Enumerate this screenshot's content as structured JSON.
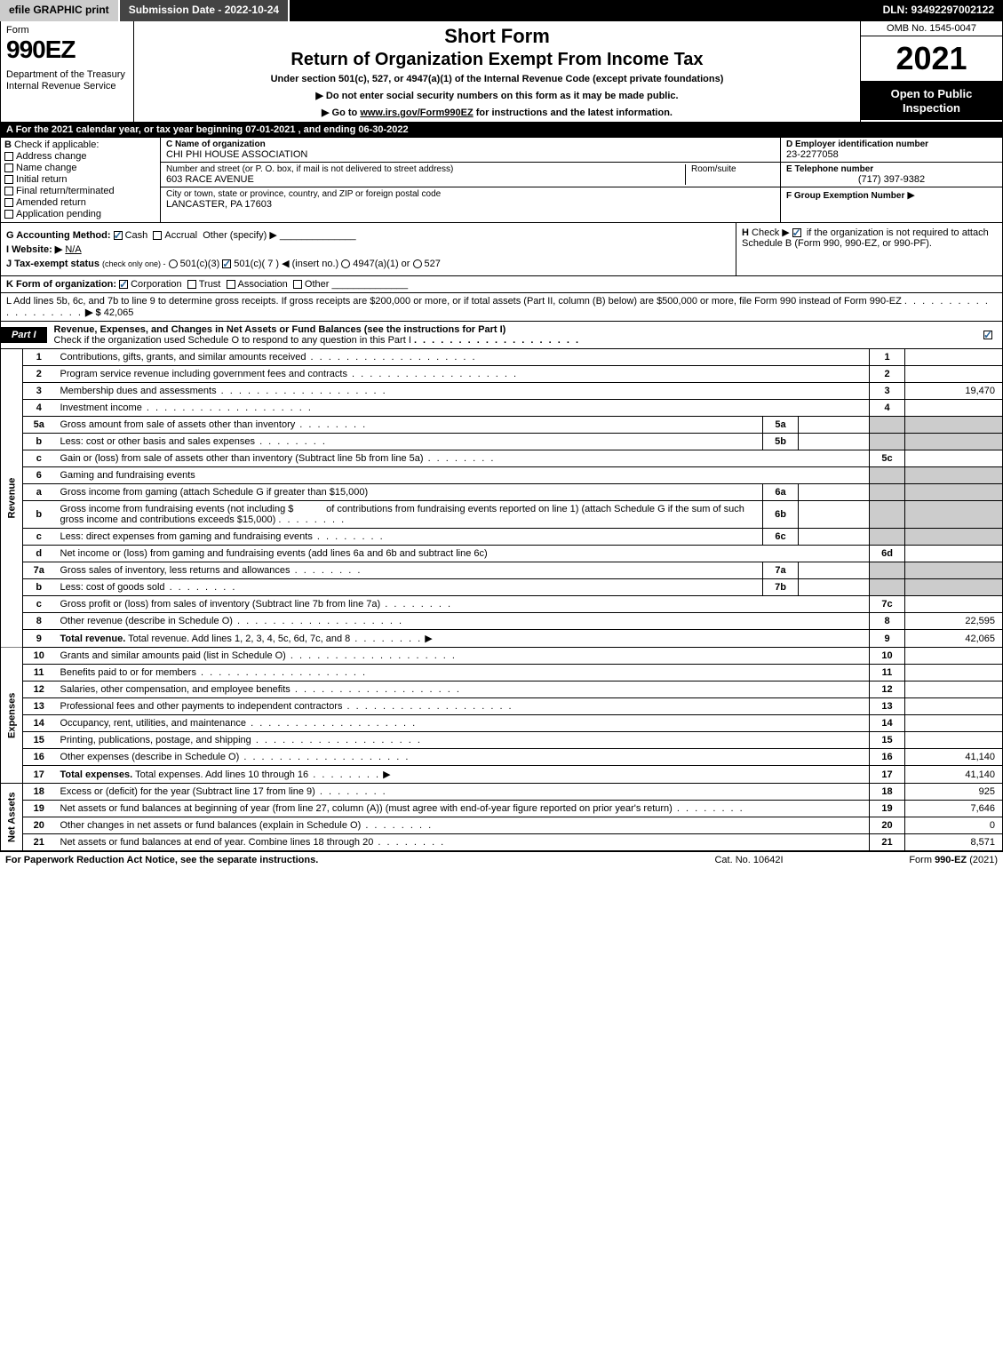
{
  "topbar": {
    "efile": "efile GRAPHIC print",
    "submission": "Submission Date - 2022-10-24",
    "dln": "DLN: 93492297002122"
  },
  "header": {
    "form_label": "Form",
    "form_num": "990EZ",
    "dept": "Department of the Treasury\nInternal Revenue Service",
    "short_form": "Short Form",
    "title": "Return of Organization Exempt From Income Tax",
    "sub": "Under section 501(c), 527, or 4947(a)(1) of the Internal Revenue Code (except private foundations)",
    "instr1": "▶ Do not enter social security numbers on this form as it may be made public.",
    "instr2_pre": "▶ Go to ",
    "instr2_link": "www.irs.gov/Form990EZ",
    "instr2_post": " for instructions and the latest information.",
    "omb": "OMB No. 1545-0047",
    "year": "2021",
    "open": "Open to Public Inspection"
  },
  "sectionA": "A  For the 2021 calendar year, or tax year beginning 07-01-2021 , and ending 06-30-2022",
  "B": {
    "label": "B",
    "check_if": "Check if applicable:",
    "items": [
      "Address change",
      "Name change",
      "Initial return",
      "Final return/terminated",
      "Amended return",
      "Application pending"
    ]
  },
  "C": {
    "name_label": "C Name of organization",
    "name": "CHI PHI HOUSE ASSOCIATION",
    "street_label": "Number and street (or P. O. box, if mail is not delivered to street address)",
    "room_label": "Room/suite",
    "street": "603 RACE AVENUE",
    "city_label": "City or town, state or province, country, and ZIP or foreign postal code",
    "city": "LANCASTER, PA  17603"
  },
  "D": {
    "label": "D Employer identification number",
    "val": "23-2277058"
  },
  "E": {
    "label": "E Telephone number",
    "val": "(717) 397-9382"
  },
  "F": {
    "label": "F Group Exemption Number",
    "arrow": "▶"
  },
  "G": {
    "label": "G Accounting Method:",
    "cash": "Cash",
    "accrual": "Accrual",
    "other": "Other (specify) ▶"
  },
  "H": {
    "text_pre": "H",
    "check": "Check ▶",
    "text": "if the organization is not required to attach Schedule B (Form 990, 990-EZ, or 990-PF)."
  },
  "I": {
    "label": "I Website: ▶",
    "val": "N/A"
  },
  "J": {
    "label": "J Tax-exempt status",
    "note": "(check only one) -",
    "opts": [
      "501(c)(3)",
      "501(c)( 7 ) ◀ (insert no.)",
      "4947(a)(1) or",
      "527"
    ]
  },
  "K": {
    "label": "K Form of organization:",
    "opts": [
      "Corporation",
      "Trust",
      "Association",
      "Other"
    ]
  },
  "L": {
    "text": "L Add lines 5b, 6c, and 7b to line 9 to determine gross receipts. If gross receipts are $200,000 or more, or if total assets (Part II, column (B) below) are $500,000 or more, file Form 990 instead of Form 990-EZ",
    "arrow": "▶ $",
    "val": "42,065"
  },
  "part1": {
    "tag": "Part I",
    "title": "Revenue, Expenses, and Changes in Net Assets or Fund Balances (see the instructions for Part I)",
    "sub": "Check if the organization used Schedule O to respond to any question in this Part I"
  },
  "sidebars": {
    "revenue": "Revenue",
    "expenses": "Expenses",
    "netassets": "Net Assets"
  },
  "lines": {
    "1": {
      "desc": "Contributions, gifts, grants, and similar amounts received",
      "val": ""
    },
    "2": {
      "desc": "Program service revenue including government fees and contracts",
      "val": ""
    },
    "3": {
      "desc": "Membership dues and assessments",
      "val": "19,470"
    },
    "4": {
      "desc": "Investment income",
      "val": ""
    },
    "5a": {
      "desc": "Gross amount from sale of assets other than inventory"
    },
    "5b": {
      "desc": "Less: cost or other basis and sales expenses"
    },
    "5c": {
      "desc": "Gain or (loss) from sale of assets other than inventory (Subtract line 5b from line 5a)",
      "val": ""
    },
    "6": {
      "desc": "Gaming and fundraising events"
    },
    "6a": {
      "desc": "Gross income from gaming (attach Schedule G if greater than $15,000)"
    },
    "6b": {
      "desc_pre": "Gross income from fundraising events (not including $",
      "desc_mid": "of contributions from fundraising events reported on line 1) (attach Schedule G if the sum of such gross income and contributions exceeds $15,000)"
    },
    "6c": {
      "desc": "Less: direct expenses from gaming and fundraising events"
    },
    "6d": {
      "desc": "Net income or (loss) from gaming and fundraising events (add lines 6a and 6b and subtract line 6c)",
      "val": ""
    },
    "7a": {
      "desc": "Gross sales of inventory, less returns and allowances"
    },
    "7b": {
      "desc": "Less: cost of goods sold"
    },
    "7c": {
      "desc": "Gross profit or (loss) from sales of inventory (Subtract line 7b from line 7a)",
      "val": ""
    },
    "8": {
      "desc": "Other revenue (describe in Schedule O)",
      "val": "22,595"
    },
    "9": {
      "desc": "Total revenue. Add lines 1, 2, 3, 4, 5c, 6d, 7c, and 8",
      "val": "42,065"
    },
    "10": {
      "desc": "Grants and similar amounts paid (list in Schedule O)",
      "val": ""
    },
    "11": {
      "desc": "Benefits paid to or for members",
      "val": ""
    },
    "12": {
      "desc": "Salaries, other compensation, and employee benefits",
      "val": ""
    },
    "13": {
      "desc": "Professional fees and other payments to independent contractors",
      "val": ""
    },
    "14": {
      "desc": "Occupancy, rent, utilities, and maintenance",
      "val": ""
    },
    "15": {
      "desc": "Printing, publications, postage, and shipping",
      "val": ""
    },
    "16": {
      "desc": "Other expenses (describe in Schedule O)",
      "val": "41,140"
    },
    "17": {
      "desc": "Total expenses. Add lines 10 through 16",
      "val": "41,140"
    },
    "18": {
      "desc": "Excess or (deficit) for the year (Subtract line 17 from line 9)",
      "val": "925"
    },
    "19": {
      "desc": "Net assets or fund balances at beginning of year (from line 27, column (A)) (must agree with end-of-year figure reported on prior year's return)",
      "val": "7,646"
    },
    "20": {
      "desc": "Other changes in net assets or fund balances (explain in Schedule O)",
      "val": "0"
    },
    "21": {
      "desc": "Net assets or fund balances at end of year. Combine lines 18 through 20",
      "val": "8,571"
    }
  },
  "footer": {
    "left": "For Paperwork Reduction Act Notice, see the separate instructions.",
    "mid": "Cat. No. 10642I",
    "right_pre": "Form ",
    "right_bold": "990-EZ",
    "right_post": " (2021)"
  }
}
